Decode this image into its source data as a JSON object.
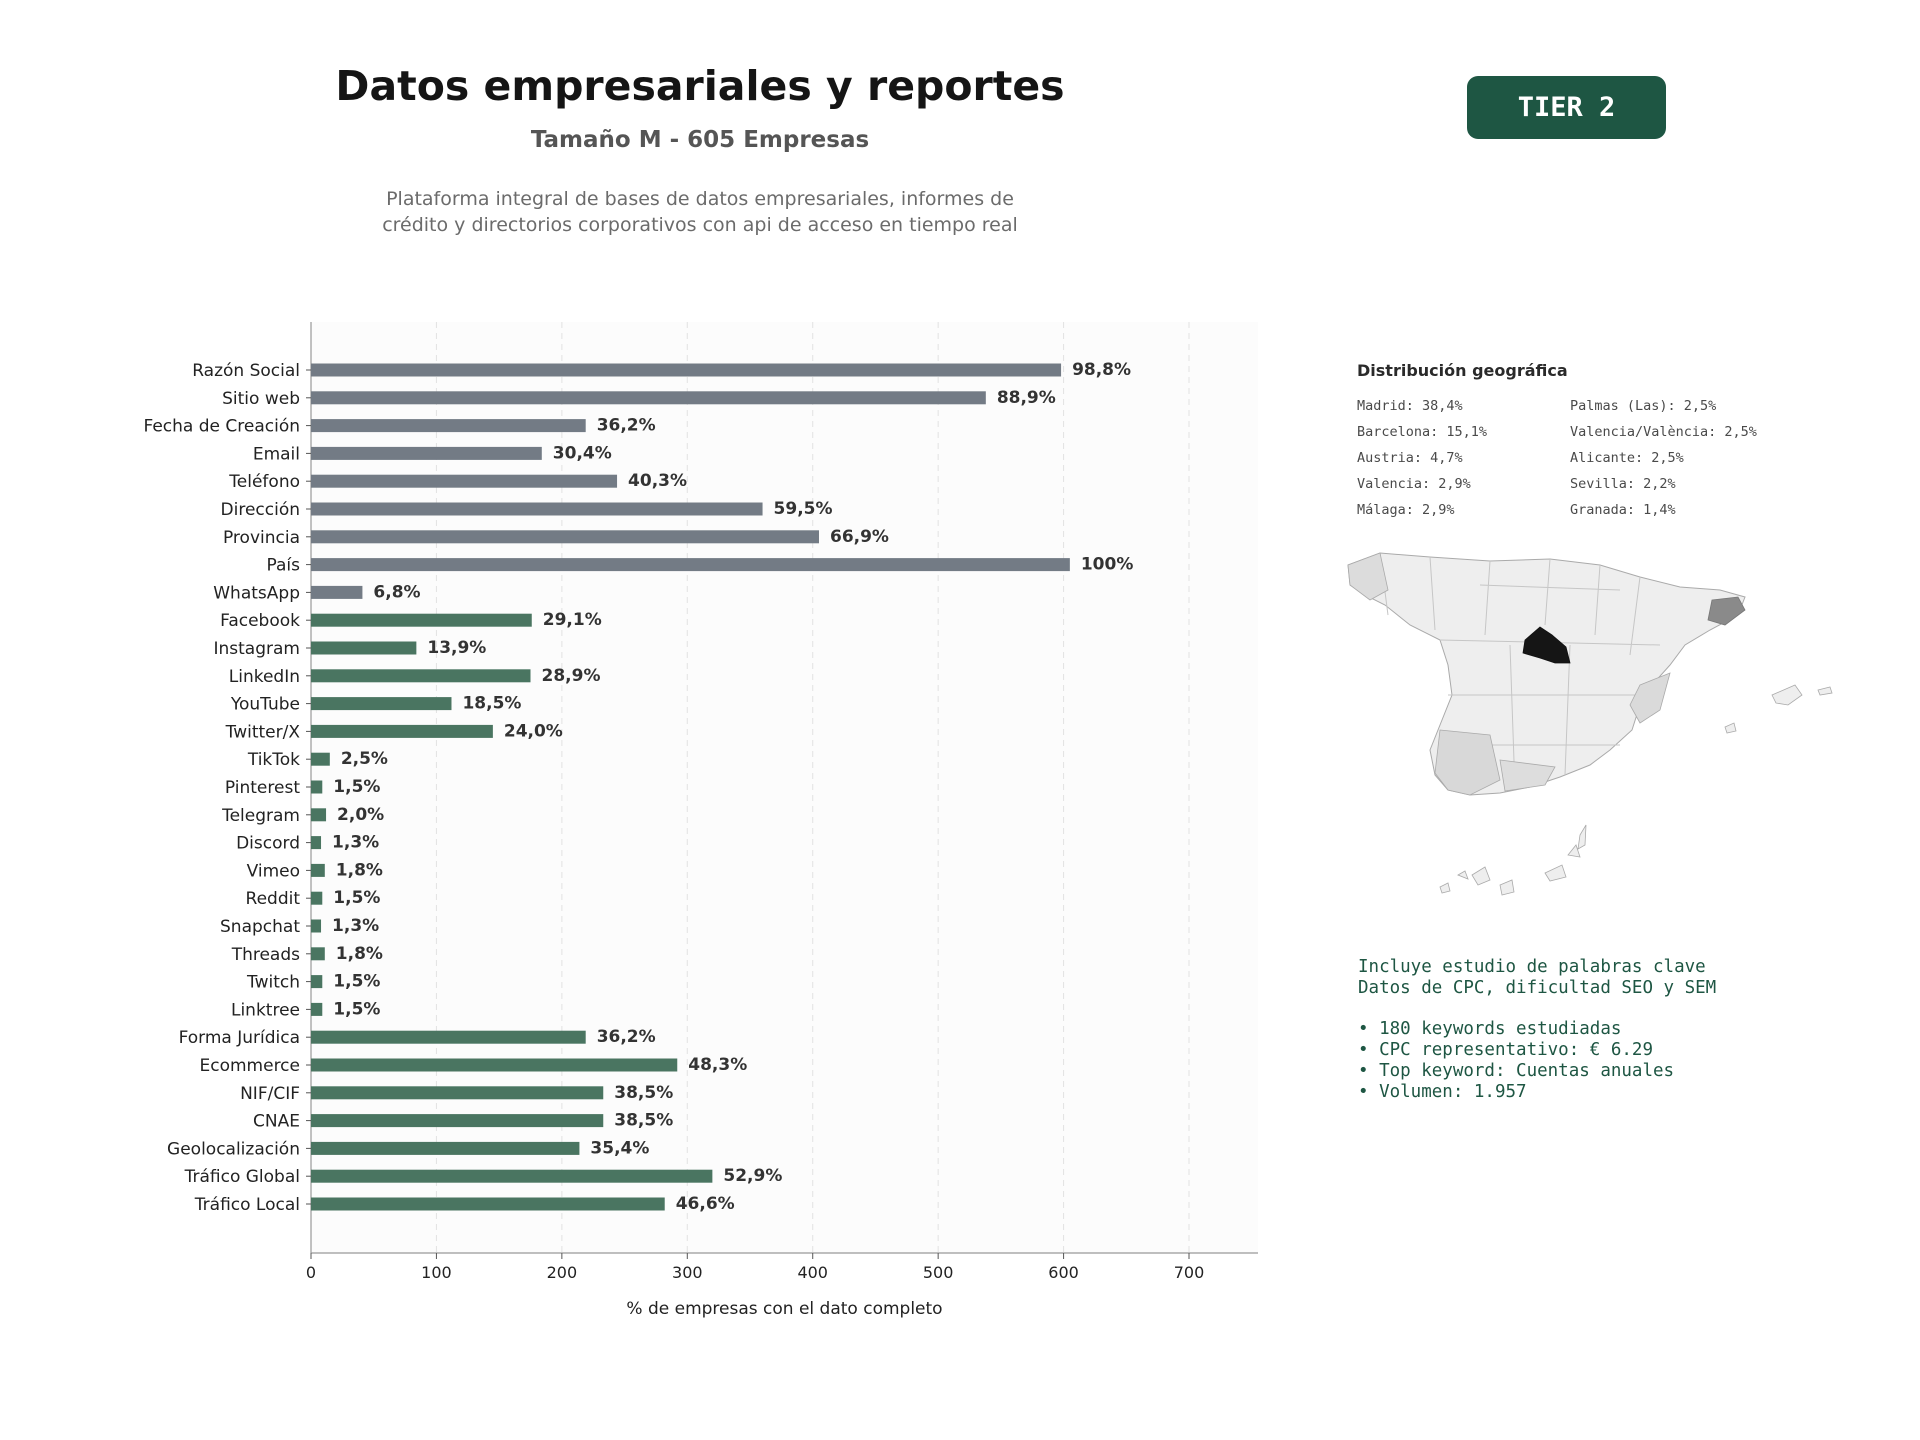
{
  "header": {
    "title": "Datos empresariales y reportes",
    "subtitle": "Tamaño M - 605 Empresas",
    "description_line1": "Plataforma integral de bases de datos empresariales, informes de",
    "description_line2": "crédito y directorios corporativos con api de acceso en tiempo real",
    "badge": "TIER 2"
  },
  "chart_data": {
    "type": "bar",
    "orientation": "horizontal",
    "xlabel": "% de empresas con el dato completo",
    "xlim": [
      0,
      755
    ],
    "xticks": [
      0,
      100,
      200,
      300,
      400,
      500,
      600,
      700
    ],
    "grid": "vertical dashed",
    "total_companies": 605,
    "categories": [
      "Razón Social",
      "Sitio web",
      "Fecha de Creación",
      "Email",
      "Teléfono",
      "Dirección",
      "Provincia",
      "País",
      "WhatsApp",
      "Facebook",
      "Instagram",
      "LinkedIn",
      "YouTube",
      "Twitter/X",
      "TikTok",
      "Pinterest",
      "Telegram",
      "Discord",
      "Vimeo",
      "Reddit",
      "Snapchat",
      "Threads",
      "Twitch",
      "Linktree",
      "Forma Jurídica",
      "Ecommerce",
      "NIF/CIF",
      "CNAE",
      "Geolocalización",
      "Tráfico Global",
      "Tráfico Local"
    ],
    "values": [
      598,
      538,
      219,
      184,
      244,
      360,
      405,
      605,
      41,
      176,
      84,
      175,
      112,
      145,
      15,
      9,
      12,
      8,
      11,
      9,
      8,
      11,
      9,
      9,
      219,
      292,
      233,
      233,
      214,
      320,
      282
    ],
    "labels": [
      "98,8%",
      "88,9%",
      "36,2%",
      "30,4%",
      "40,3%",
      "59,5%",
      "66,9%",
      "100%",
      "6,8%",
      "29,1%",
      "13,9%",
      "28,9%",
      "18,5%",
      "24,0%",
      "2,5%",
      "1,5%",
      "2,0%",
      "1,3%",
      "1,8%",
      "1,5%",
      "1,3%",
      "1,8%",
      "1,5%",
      "1,5%",
      "36,2%",
      "48,3%",
      "38,5%",
      "38,5%",
      "35,4%",
      "52,9%",
      "46,6%"
    ],
    "group_split_index": 9,
    "colors": {
      "group1": "#737b85",
      "group2": "#4a7561",
      "grid": "#e2e2e2",
      "axis": "#999999"
    }
  },
  "geo": {
    "title": "Distribución geográfica",
    "items": [
      "Madrid: 38,4%",
      "Palmas (Las): 2,5%",
      "Barcelona: 15,1%",
      "Valencia/València: 2,5%",
      "Austria: 4,7%",
      "Alicante: 2,5%",
      "Valencia: 2,9%",
      "Sevilla: 2,2%",
      "Málaga: 2,9%",
      "Granada: 1,4%"
    ]
  },
  "keywords": {
    "line1": "Incluye estudio de palabras clave",
    "line2": "Datos de CPC, dificultad SEO y SEM",
    "bullets": [
      "• 180 keywords estudiadas",
      "• CPC representativo: € 6.29",
      "• Top keyword: Cuentas anuales",
      "• Volumen: 1.957"
    ]
  }
}
